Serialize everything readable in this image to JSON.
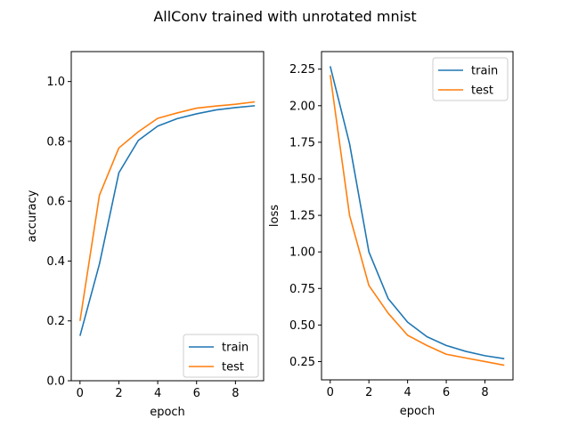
{
  "suptitle": "AllConv trained with unrotated mnist",
  "colors": {
    "train": "#1f77b4",
    "test": "#ff7f0e"
  },
  "chart_data": [
    {
      "type": "line",
      "title": "",
      "xlabel": "epoch",
      "ylabel": "accuracy",
      "xlim": [
        -0.45,
        9.45
      ],
      "ylim": [
        0,
        1.1
      ],
      "xticks": [
        0,
        2,
        4,
        6,
        8
      ],
      "yticks": [
        0.0,
        0.2,
        0.4,
        0.6,
        0.8,
        1.0
      ],
      "ytick_labels": [
        "0.0",
        "0.2",
        "0.4",
        "0.6",
        "0.8",
        "1.0"
      ],
      "legend_loc": "lower right",
      "grid": false,
      "x": [
        0,
        1,
        2,
        3,
        4,
        5,
        6,
        7,
        8,
        9
      ],
      "series": [
        {
          "name": "train",
          "values": [
            0.15,
            0.39,
            0.695,
            0.803,
            0.851,
            0.876,
            0.892,
            0.905,
            0.913,
            0.919
          ]
        },
        {
          "name": "test",
          "values": [
            0.2,
            0.62,
            0.778,
            0.832,
            0.877,
            0.895,
            0.911,
            0.918,
            0.924,
            0.932
          ]
        }
      ]
    },
    {
      "type": "line",
      "title": "",
      "xlabel": "epoch",
      "ylabel": "loss",
      "xlim": [
        -0.45,
        9.45
      ],
      "ylim": [
        0.125,
        2.37
      ],
      "xticks": [
        0,
        2,
        4,
        6,
        8
      ],
      "yticks": [
        0.25,
        0.5,
        0.75,
        1.0,
        1.25,
        1.5,
        1.75,
        2.0,
        2.25
      ],
      "ytick_labels": [
        "0.25",
        "0.50",
        "0.75",
        "1.00",
        "1.25",
        "1.50",
        "1.75",
        "2.00",
        "2.25"
      ],
      "legend_loc": "upper right",
      "grid": false,
      "x": [
        0,
        1,
        2,
        3,
        4,
        5,
        6,
        7,
        8,
        9
      ],
      "series": [
        {
          "name": "train",
          "values": [
            2.27,
            1.74,
            1.0,
            0.68,
            0.52,
            0.42,
            0.36,
            0.32,
            0.29,
            0.27
          ]
        },
        {
          "name": "test",
          "values": [
            2.21,
            1.25,
            0.77,
            0.58,
            0.43,
            0.36,
            0.3,
            0.275,
            0.25,
            0.225
          ]
        }
      ]
    }
  ]
}
